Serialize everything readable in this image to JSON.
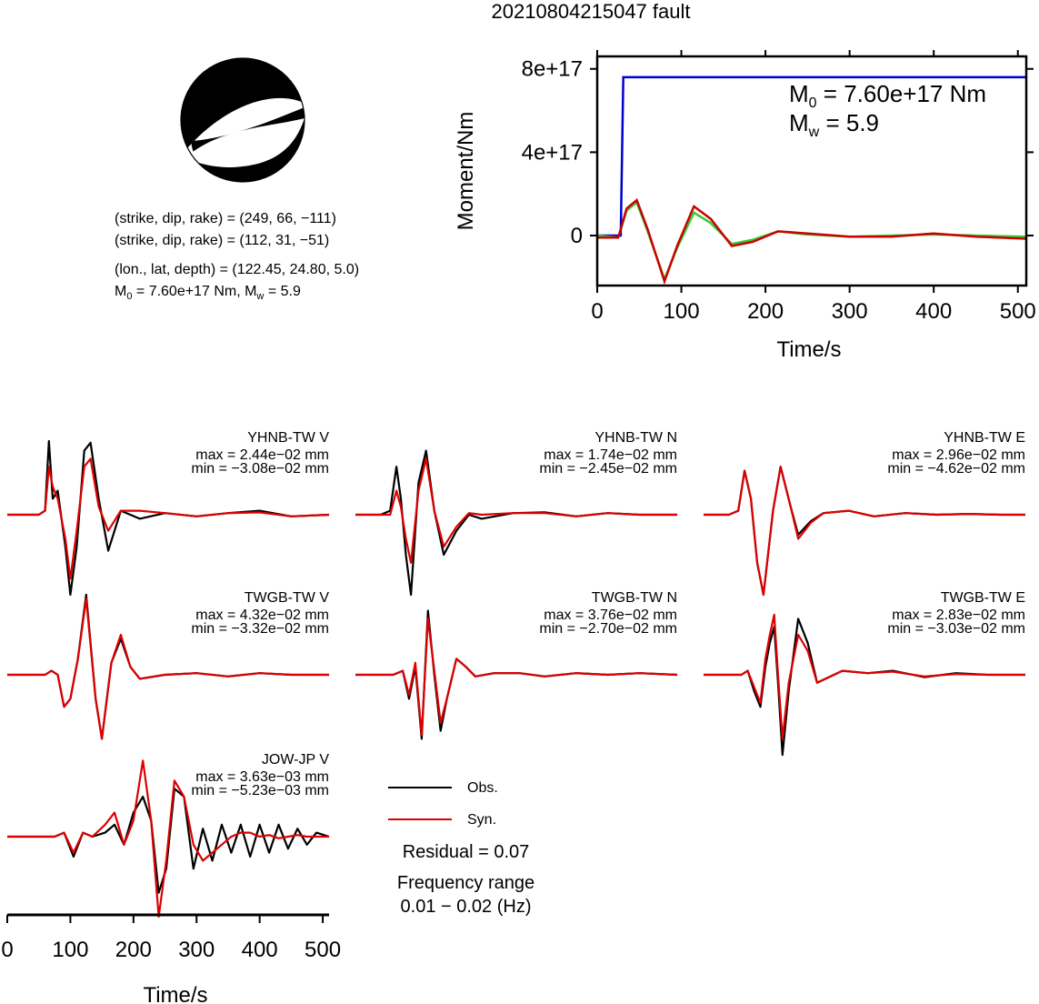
{
  "title": "20210804215047 fault",
  "params": {
    "line1": "(strike, dip, rake) = (249, 66, −111)",
    "line2": "(strike, dip, rake) = (112, 31, −51)",
    "line3": "(lon., lat, depth) = (122.45, 24.80, 5.0)",
    "m0_prefix": "M",
    "m0_sub": "0",
    "m0_text": " = 7.60e+17 Nm, M",
    "mw_sub": "w",
    "mw_text": " = 5.9"
  },
  "moment_chart": {
    "type": "line",
    "xlabel": "Time/s",
    "ylabel": "Moment/Nm",
    "x_ticks": [
      "0",
      "100",
      "200",
      "300",
      "400",
      "500"
    ],
    "y_ticks": [
      "0",
      "4e+17",
      "8e+17"
    ],
    "xlim": [
      0,
      510
    ],
    "ylim": [
      -2.4e+17,
      8.6e+17
    ],
    "annot_m0_sym": "M",
    "annot_m0_sub": "0",
    "annot_m0_text": " = 7.60e+17 Nm",
    "annot_mw_sym": "M",
    "annot_mw_sub": "w",
    "annot_mw_text": " = 5.9",
    "series": [
      {
        "color": "#0000cc",
        "x": [
          0,
          28,
          31,
          510
        ],
        "y": [
          0,
          0,
          7.6e+17,
          7.6e+17
        ]
      },
      {
        "color": "#33cc33",
        "x": [
          0,
          25,
          35,
          47,
          60,
          80,
          95,
          115,
          135,
          160,
          185,
          215,
          250,
          300,
          350,
          400,
          450,
          510
        ],
        "y": [
          0,
          -1e+16,
          1.2e+17,
          1.6e+17,
          2e+16,
          -2.1e+17,
          -6e+16,
          1.1e+17,
          6e+16,
          -4e+16,
          -2e+16,
          2e+16,
          5000000000000000.0,
          -5000000000000000.0,
          0,
          5000000000000000.0,
          0,
          -5000000000000000.0
        ]
      },
      {
        "color": "#cc0000",
        "x": [
          0,
          25,
          35,
          47,
          60,
          80,
          95,
          115,
          135,
          160,
          185,
          215,
          250,
          300,
          350,
          400,
          450,
          510
        ],
        "y": [
          -1e+16,
          -1e+16,
          1.3e+17,
          1.7e+17,
          3e+16,
          -2.2e+17,
          -5e+16,
          1.4e+17,
          8e+16,
          -5e+16,
          -3e+16,
          2e+16,
          1e+16,
          -5000000000000000.0,
          -5000000000000000.0,
          1e+16,
          -5000000000000000.0,
          -1.5e+16
        ]
      }
    ]
  },
  "waveforms": {
    "xlabel": "Time/s",
    "x_ticks": [
      "0",
      "100",
      "200",
      "300",
      "400",
      "500"
    ],
    "xlim": [
      0,
      510
    ],
    "obs_color": "#000000",
    "syn_color": "#dd0000",
    "panels": [
      {
        "name": "YHNB-TW V",
        "max": "max = 2.44e−02 mm",
        "min": "min = −3.08e−02 mm",
        "t": [
          0,
          50,
          60,
          66,
          72,
          80,
          92,
          100,
          110,
          122,
          132,
          145,
          160,
          180,
          210,
          250,
          300,
          350,
          400,
          450,
          510
        ],
        "obs": [
          0,
          0,
          0.05,
          0.92,
          0.2,
          0.3,
          -0.4,
          -1.0,
          -0.4,
          0.8,
          0.9,
          0.2,
          -0.45,
          0.05,
          -0.05,
          0.02,
          -0.02,
          0.02,
          0.05,
          -0.02,
          0
        ],
        "syn": [
          0,
          0,
          0.05,
          0.6,
          0.35,
          0.2,
          -0.3,
          -0.8,
          -0.2,
          0.6,
          0.7,
          0.1,
          -0.2,
          0.05,
          0.05,
          0.02,
          -0.02,
          0.02,
          0.03,
          -0.02,
          0
        ]
      },
      {
        "name": "YHNB-TW N",
        "max": "max = 1.74e−02 mm",
        "min": "min = −2.45e−02 mm",
        "t": [
          0,
          40,
          55,
          65,
          72,
          80,
          88,
          100,
          112,
          125,
          140,
          160,
          180,
          200,
          250,
          300,
          350,
          400,
          450,
          510
        ],
        "obs": [
          0,
          0,
          0.05,
          0.6,
          0.2,
          -0.5,
          -1.0,
          0.4,
          0.8,
          0.05,
          -0.5,
          -0.2,
          0,
          -0.05,
          0.02,
          0.03,
          -0.02,
          0.02,
          0,
          0
        ],
        "syn": [
          0,
          0,
          0.0,
          0.3,
          0.1,
          -0.3,
          -0.6,
          0.3,
          0.7,
          0.05,
          -0.4,
          -0.15,
          0.02,
          0,
          0.02,
          0.02,
          -0.02,
          0.02,
          0,
          0
        ]
      },
      {
        "name": "YHNB-TW E",
        "max": "max = 2.96e−02 mm",
        "min": "min = −4.62e−02 mm",
        "t": [
          0,
          40,
          55,
          65,
          75,
          85,
          95,
          110,
          122,
          138,
          150,
          170,
          190,
          230,
          270,
          320,
          370,
          420,
          470,
          510
        ],
        "obs": [
          0,
          0,
          0.05,
          0.55,
          0.2,
          -0.6,
          -1.0,
          0.05,
          0.6,
          0.1,
          -0.25,
          -0.08,
          0.02,
          0.05,
          -0.02,
          0.02,
          0,
          0.01,
          0,
          0
        ],
        "syn": [
          0,
          0,
          0.05,
          0.55,
          0.2,
          -0.6,
          -1.0,
          0.05,
          0.6,
          0.1,
          -0.3,
          -0.1,
          0.02,
          0.05,
          -0.02,
          0.02,
          0,
          0.01,
          0,
          0
        ]
      },
      {
        "name": "TWGB-TW V",
        "max": "max = 4.32e−02 mm",
        "min": "min = −3.32e−02 mm",
        "t": [
          0,
          60,
          70,
          80,
          90,
          100,
          112,
          125,
          140,
          150,
          165,
          180,
          195,
          210,
          250,
          300,
          350,
          400,
          450,
          510
        ],
        "obs": [
          0,
          0,
          0.05,
          0.0,
          -0.4,
          -0.3,
          0.2,
          1.0,
          -0.3,
          -0.8,
          0.15,
          0.45,
          0.1,
          -0.05,
          0.0,
          0.02,
          -0.02,
          0.02,
          0,
          0
        ],
        "syn": [
          0,
          0,
          0.05,
          0.0,
          -0.4,
          -0.3,
          0.2,
          0.95,
          -0.3,
          -0.8,
          0.15,
          0.5,
          0.1,
          -0.05,
          0.0,
          0.02,
          -0.02,
          0.02,
          0,
          0
        ]
      },
      {
        "name": "TWGB-TW N",
        "max": "max = 3.76e−02 mm",
        "min": "min = −2.70e−02 mm",
        "t": [
          0,
          60,
          75,
          85,
          95,
          105,
          115,
          125,
          135,
          145,
          160,
          175,
          190,
          220,
          260,
          300,
          350,
          400,
          450,
          510
        ],
        "obs": [
          0,
          0,
          0.05,
          -0.3,
          0.1,
          -0.8,
          0.8,
          0.0,
          -0.7,
          -0.3,
          0.2,
          0.1,
          -0.02,
          0.02,
          0.02,
          -0.02,
          0.02,
          0,
          0.02,
          0
        ],
        "syn": [
          0,
          0,
          0.05,
          -0.25,
          0.15,
          -0.75,
          0.7,
          0.05,
          -0.6,
          -0.3,
          0.2,
          0.1,
          -0.02,
          0.02,
          0.02,
          -0.02,
          0.02,
          0,
          0.02,
          0
        ]
      },
      {
        "name": "TWGB-TW E",
        "max": "max = 2.83e−02 mm",
        "min": "min = −3.03e−02 mm",
        "t": [
          0,
          60,
          70,
          80,
          90,
          98,
          105,
          112,
          118,
          125,
          135,
          150,
          165,
          180,
          220,
          260,
          300,
          350,
          400,
          450,
          510
        ],
        "obs": [
          0,
          0,
          0.05,
          -0.2,
          -0.4,
          0.1,
          0.4,
          0.6,
          -0.1,
          -1.0,
          -0.2,
          0.7,
          0.4,
          -0.1,
          0.05,
          0.02,
          0.05,
          -0.03,
          0.02,
          0,
          0
        ],
        "syn": [
          0,
          0,
          0.05,
          -0.15,
          -0.35,
          0.2,
          0.5,
          0.75,
          0.0,
          -0.8,
          -0.1,
          0.5,
          0.3,
          -0.1,
          0.05,
          0.02,
          0.04,
          -0.02,
          0.01,
          0,
          0
        ]
      },
      {
        "name": "JOW-JP V",
        "max": "max = 3.63e−03 mm",
        "min": "min = −5.23e−03 mm",
        "t": [
          0,
          40,
          75,
          90,
          105,
          120,
          135,
          155,
          170,
          185,
          200,
          215,
          228,
          240,
          252,
          265,
          280,
          295,
          310,
          325,
          340,
          355,
          370,
          385,
          400,
          415,
          430,
          445,
          460,
          475,
          490,
          510
        ],
        "obs": [
          0,
          0,
          0,
          0.05,
          -0.25,
          0.05,
          0.0,
          0.05,
          0.15,
          -0.1,
          0.3,
          0.5,
          0.2,
          -0.7,
          -0.4,
          0.6,
          0.5,
          -0.4,
          0.1,
          -0.3,
          0.15,
          -0.2,
          0.15,
          -0.25,
          0.15,
          -0.2,
          0.15,
          -0.15,
          0.1,
          -0.1,
          0.05,
          0
        ],
        "syn": [
          0,
          0,
          0,
          0.05,
          -0.2,
          0.05,
          0.0,
          0.15,
          0.3,
          -0.1,
          0.2,
          0.95,
          0.2,
          -1.0,
          -0.3,
          0.7,
          0.5,
          -0.1,
          -0.3,
          -0.2,
          -0.1,
          0.0,
          0.05,
          0.05,
          0.0,
          0.02,
          -0.02,
          0.0,
          0.02,
          0.0,
          0.0,
          0
        ]
      }
    ],
    "legend": {
      "obs_label": "Obs.",
      "syn_label": "Syn."
    },
    "residual": "Residual = 0.07",
    "freq_label": "Frequency range",
    "freq_value": "0.01 − 0.02 (Hz)"
  }
}
